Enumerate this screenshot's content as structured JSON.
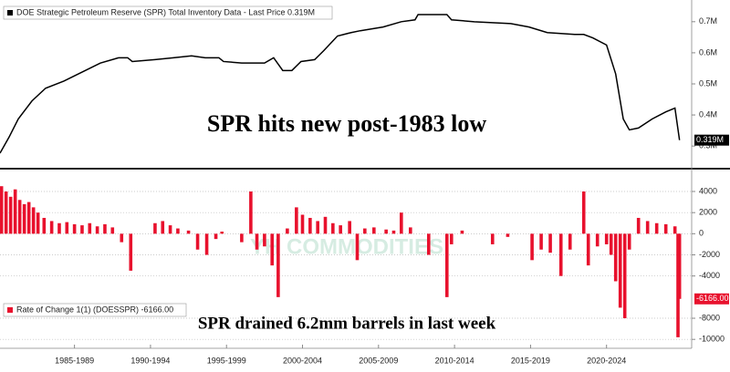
{
  "chart_data": [
    {
      "type": "line",
      "x": [
        1982.6,
        1983.2,
        1983.8,
        1984.7,
        1985.6,
        1986.8,
        1988.0,
        1989.2,
        1990.4,
        1991.0,
        1991.3,
        1992.8,
        1994.0,
        1995.2,
        1996.1,
        1997.0,
        1997.3,
        1998.5,
        2000.0,
        2000.6,
        2001.2,
        2001.8,
        2002.4,
        2003.3,
        2003.9,
        2004.8,
        2005.7,
        2006.3,
        2007.8,
        2009.0,
        2009.9,
        2010.1,
        2012.0,
        2012.3,
        2013.8,
        2016.2,
        2017.4,
        2018.6,
        2020.4,
        2021.0,
        2021.6,
        2022.5,
        2023.1,
        2023.6,
        2024.0,
        2024.6,
        2025.5,
        2026.4,
        2027.0,
        2027.3
      ],
      "series": [
        {
          "name": "DOE Strategic Petroleum Reserve (SPR) Total Inventory Data - Last Price 0.319M",
          "color": "#000000",
          "values": [
            0.277,
            0.329,
            0.387,
            0.445,
            0.486,
            0.509,
            0.538,
            0.567,
            0.584,
            0.584,
            0.572,
            0.578,
            0.584,
            0.59,
            0.584,
            0.584,
            0.572,
            0.567,
            0.567,
            0.584,
            0.543,
            0.543,
            0.572,
            0.578,
            0.607,
            0.654,
            0.665,
            0.671,
            0.683,
            0.7,
            0.706,
            0.723,
            0.723,
            0.706,
            0.7,
            0.694,
            0.683,
            0.665,
            0.659,
            0.659,
            0.648,
            0.625,
            0.532,
            0.387,
            0.352,
            0.358,
            0.387,
            0.41,
            0.422,
            0.319
          ]
        }
      ],
      "xlim": [
        1982.6,
        2028.1
      ],
      "ylim": [
        0.233,
        0.764
      ],
      "yticks": [
        {
          "value": 0.7,
          "label": "0.7M"
        },
        {
          "value": 0.6,
          "label": "0.6M"
        },
        {
          "value": 0.5,
          "label": "0.5M"
        },
        {
          "value": 0.4,
          "label": "0.4M"
        },
        {
          "value": 0.3,
          "label": "0.3M"
        }
      ],
      "last_price": {
        "value": 0.319,
        "label": "0.319M"
      },
      "annotation": "SPR hits new post-1983 low",
      "legend": "upper left"
    },
    {
      "type": "bar",
      "x": [
        1982.7,
        1983.0,
        1983.3,
        1983.6,
        1983.9,
        1984.2,
        1984.5,
        1984.8,
        1985.1,
        1985.5,
        1986.0,
        1986.5,
        1987.0,
        1987.5,
        1988.0,
        1988.5,
        1989.0,
        1989.5,
        1990.0,
        1990.6,
        1991.2,
        1992.8,
        1993.3,
        1993.8,
        1994.3,
        1995.0,
        1995.6,
        1996.2,
        1996.8,
        1997.2,
        1998.5,
        1999.1,
        1999.5,
        2000.0,
        2000.5,
        2000.9,
        2001.5,
        2002.1,
        2002.5,
        2003.0,
        2003.5,
        2004.0,
        2004.5,
        2005.0,
        2005.6,
        2006.1,
        2006.6,
        2007.2,
        2008.0,
        2008.5,
        2009.0,
        2009.6,
        2010.8,
        2012.0,
        2012.3,
        2013.0,
        2015.0,
        2016.0,
        2017.6,
        2018.2,
        2018.8,
        2019.5,
        2020.1,
        2021.0,
        2021.3,
        2021.9,
        2022.5,
        2022.8,
        2023.1,
        2023.4,
        2023.7,
        2024.0,
        2024.6,
        2025.2,
        2025.8,
        2026.4,
        2027.0,
        2027.2,
        2027.3
      ],
      "series": [
        {
          "name": "Rate of Change 1(1) (DOESSPR) -6166.00",
          "color": "#e8112d",
          "values": [
            4500,
            4000,
            3500,
            4200,
            3200,
            2800,
            3000,
            2500,
            2000,
            1500,
            1200,
            1000,
            1100,
            900,
            800,
            1000,
            700,
            900,
            600,
            -800,
            -3500,
            1000,
            1200,
            800,
            500,
            300,
            -1500,
            -2000,
            -500,
            200,
            -800,
            4000,
            -1500,
            -1200,
            -3000,
            -6000,
            500,
            2500,
            1800,
            1500,
            1200,
            1600,
            1000,
            800,
            1200,
            -2500,
            500,
            600,
            400,
            300,
            2000,
            600,
            -2000,
            -6000,
            -1000,
            300,
            -1000,
            -300,
            -2500,
            -1500,
            -1800,
            -4000,
            -1500,
            4000,
            -3000,
            -1200,
            -1000,
            -2000,
            -4500,
            -7000,
            -8000,
            -1500,
            1500,
            1200,
            1000,
            900,
            700,
            -9800,
            -6166
          ]
        }
      ],
      "xlim": [
        1982.6,
        2028.1
      ],
      "ylim": [
        -10500,
        5900
      ],
      "yticks": [
        4000,
        2000,
        0,
        -2000,
        -4000,
        -8000,
        -10000
      ],
      "xticks": [
        {
          "value": 1987.5,
          "label": "1985-1989"
        },
        {
          "value": 1992.5,
          "label": "1990-1994"
        },
        {
          "value": 1997.5,
          "label": "1995-1999"
        },
        {
          "value": 2002.5,
          "label": "2000-2004"
        },
        {
          "value": 2007.5,
          "label": "2005-2009"
        },
        {
          "value": 2012.5,
          "label": "2010-2014"
        },
        {
          "value": 2017.5,
          "label": "2015-2019"
        },
        {
          "value": 2022.5,
          "label": "2020-2024"
        }
      ],
      "last_label": {
        "value": -6166,
        "label": "-6166.00"
      },
      "annotation": "SPR drained 6.2mm barrels in last week",
      "watermark": "YH COMMODITIES",
      "legend": "lower left",
      "grid": true
    }
  ]
}
